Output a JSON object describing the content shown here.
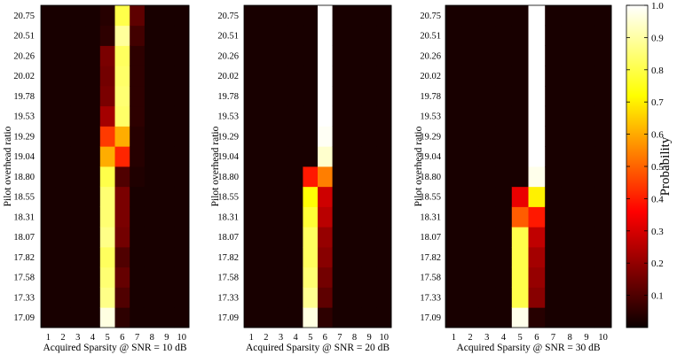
{
  "chart_data": {
    "type": "heatmap",
    "x_ticks": [
      "1",
      "2",
      "3",
      "4",
      "5",
      "6",
      "7",
      "8",
      "9",
      "10"
    ],
    "y_ticks": [
      "17.09",
      "17.33",
      "17.58",
      "17.82",
      "18.07",
      "18.31",
      "18.55",
      "18.80",
      "19.04",
      "19.29",
      "19.53",
      "19.78",
      "20.02",
      "20.26",
      "20.51",
      "20.75"
    ],
    "ylabel": "Pilot overhead ratio",
    "colormap": "hot",
    "colorbar": {
      "label": "Probability",
      "ticks": [
        "0.1",
        "0.2",
        "0.3",
        "0.4",
        "0.5",
        "0.6",
        "0.7",
        "0.8",
        "0.9",
        "1.0"
      ],
      "range": [
        0,
        1
      ]
    },
    "panels": [
      {
        "xlabel": "Acquired Sparsity @ SNR = 10 dB",
        "columns": {
          "5": [
            0.97,
            0.88,
            0.86,
            0.84,
            0.88,
            0.86,
            0.86,
            0.82,
            0.62,
            0.45,
            0.22,
            0.16,
            0.15,
            0.16,
            0.05,
            0.04
          ],
          "6": [
            0.05,
            0.1,
            0.13,
            0.1,
            0.15,
            0.16,
            0.16,
            0.1,
            0.42,
            0.62,
            0.85,
            0.86,
            0.85,
            0.84,
            0.9,
            0.82
          ],
          "7": [
            0.02,
            0.02,
            0.02,
            0.02,
            0.02,
            0.02,
            0.02,
            0.03,
            0.04,
            0.04,
            0.05,
            0.05,
            0.05,
            0.05,
            0.08,
            0.12
          ]
        }
      },
      {
        "xlabel": "Acquired Sparsity @ SNR = 20 dB",
        "columns": {
          "5": [
            0.97,
            0.89,
            0.86,
            0.84,
            0.84,
            0.8,
            0.75,
            0.4,
            0.02,
            0.02,
            0.02,
            0.02,
            0.02,
            0.02,
            0.02,
            0.02
          ],
          "6": [
            0.05,
            0.12,
            0.15,
            0.18,
            0.2,
            0.25,
            0.28,
            0.55,
            0.95,
            0.99,
            1.0,
            1.0,
            1.0,
            1.0,
            1.0,
            1.0
          ]
        }
      },
      {
        "xlabel": "Acquired Sparsity @ SNR = 30 dB",
        "columns": {
          "5": [
            0.98,
            0.82,
            0.82,
            0.82,
            0.82,
            0.5,
            0.32,
            0.02,
            0.02,
            0.02,
            0.02,
            0.02,
            0.02,
            0.02,
            0.02,
            0.02
          ],
          "6": [
            0.04,
            0.18,
            0.2,
            0.22,
            0.26,
            0.4,
            0.72,
            0.98,
            1.0,
            1.0,
            1.0,
            1.0,
            1.0,
            1.0,
            1.0,
            1.0
          ]
        }
      }
    ]
  }
}
